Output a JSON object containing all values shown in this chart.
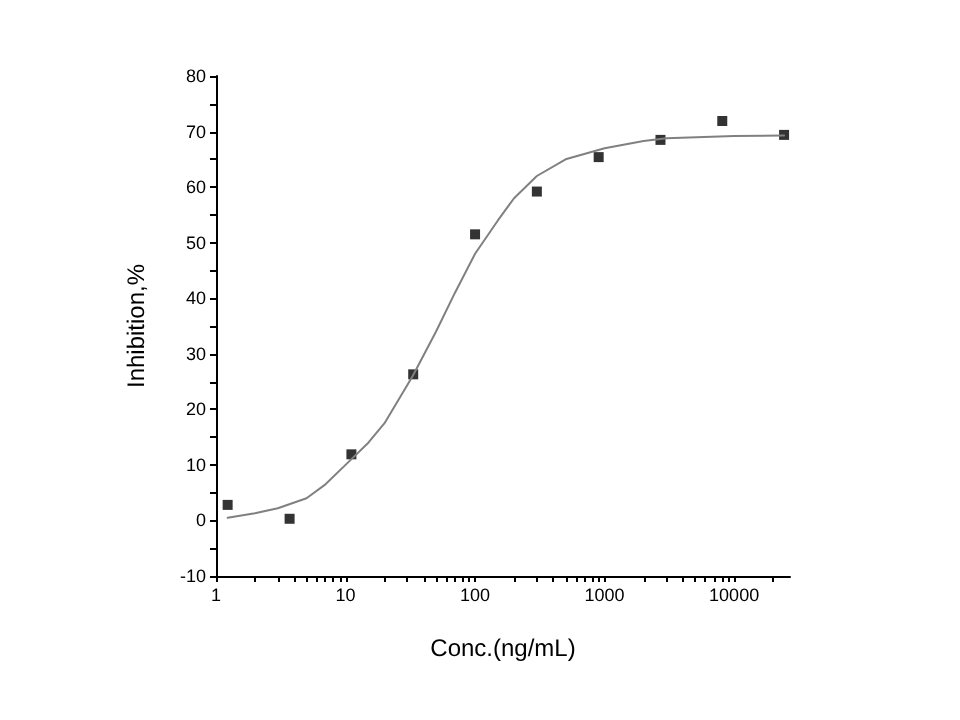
{
  "chart_data": {
    "type": "scatter",
    "xlabel": "Conc.(ng/mL)",
    "ylabel": "Inhibition,%",
    "log": "x",
    "xlim": [
      1,
      27000
    ],
    "ylim": [
      -10,
      80
    ],
    "xticks": [
      1,
      {
        "value": 2,
        "label": null
      },
      {
        "value": 3,
        "label": null
      },
      {
        "value": 4,
        "label": null
      },
      {
        "value": 5,
        "label": null
      },
      {
        "value": 6,
        "label": null
      },
      {
        "value": 7,
        "label": null
      },
      {
        "value": 8,
        "label": null
      },
      {
        "value": 9,
        "label": null
      },
      10,
      {
        "value": 20,
        "label": null
      },
      {
        "value": 30,
        "label": null
      },
      {
        "value": 40,
        "label": null
      },
      {
        "value": 50,
        "label": null
      },
      {
        "value": 60,
        "label": null
      },
      {
        "value": 70,
        "label": null
      },
      {
        "value": 80,
        "label": null
      },
      {
        "value": 90,
        "label": null
      },
      100,
      {
        "value": 200,
        "label": null
      },
      {
        "value": 300,
        "label": null
      },
      {
        "value": 400,
        "label": null
      },
      {
        "value": 500,
        "label": null
      },
      {
        "value": 600,
        "label": null
      },
      {
        "value": 700,
        "label": null
      },
      {
        "value": 800,
        "label": null
      },
      {
        "value": 900,
        "label": null
      },
      1000,
      {
        "value": 2000,
        "label": null
      },
      {
        "value": 3000,
        "label": null
      },
      {
        "value": 4000,
        "label": null
      },
      {
        "value": 5000,
        "label": null
      },
      {
        "value": 6000,
        "label": null
      },
      {
        "value": 7000,
        "label": null
      },
      {
        "value": 8000,
        "label": null
      },
      {
        "value": 9000,
        "label": null
      },
      10000,
      {
        "value": 20000,
        "label": null
      }
    ],
    "yticks": [
      -10,
      {
        "value": -5,
        "label": null
      },
      0,
      {
        "value": 5,
        "label": null
      },
      10,
      {
        "value": 15,
        "label": null
      },
      20,
      {
        "value": 25,
        "label": null
      },
      30,
      {
        "value": 35,
        "label": null
      },
      40,
      {
        "value": 45,
        "label": null
      },
      50,
      {
        "value": 55,
        "label": null
      },
      60,
      {
        "value": 65,
        "label": null
      },
      70,
      {
        "value": 75,
        "label": null
      },
      80
    ],
    "grid": false,
    "series": [
      {
        "marker": "square",
        "color": "#000000",
        "x": [
          1.23,
          3.7,
          11.1,
          33.3,
          100,
          300,
          900,
          2700,
          8100,
          24300
        ],
        "values": [
          2.8,
          0.3,
          11.9,
          26.3,
          51.5,
          59.2,
          65.4,
          68.5,
          71.9,
          69.4
        ]
      },
      {
        "type": "line",
        "marker": "none",
        "line_style": "solid",
        "color": "#808080",
        "x": [
          1.23,
          2,
          3,
          5,
          7,
          10,
          15,
          20,
          33,
          50,
          70,
          100,
          150,
          200,
          300,
          500,
          1000,
          2000,
          3000,
          10000,
          24300
        ],
        "values": [
          0.5,
          1.3,
          2.2,
          4,
          6.5,
          10,
          14,
          17.5,
          26,
          34,
          41,
          48,
          54,
          58,
          62,
          65,
          67,
          68.3,
          68.8,
          69.2,
          69.3
        ]
      }
    ]
  }
}
